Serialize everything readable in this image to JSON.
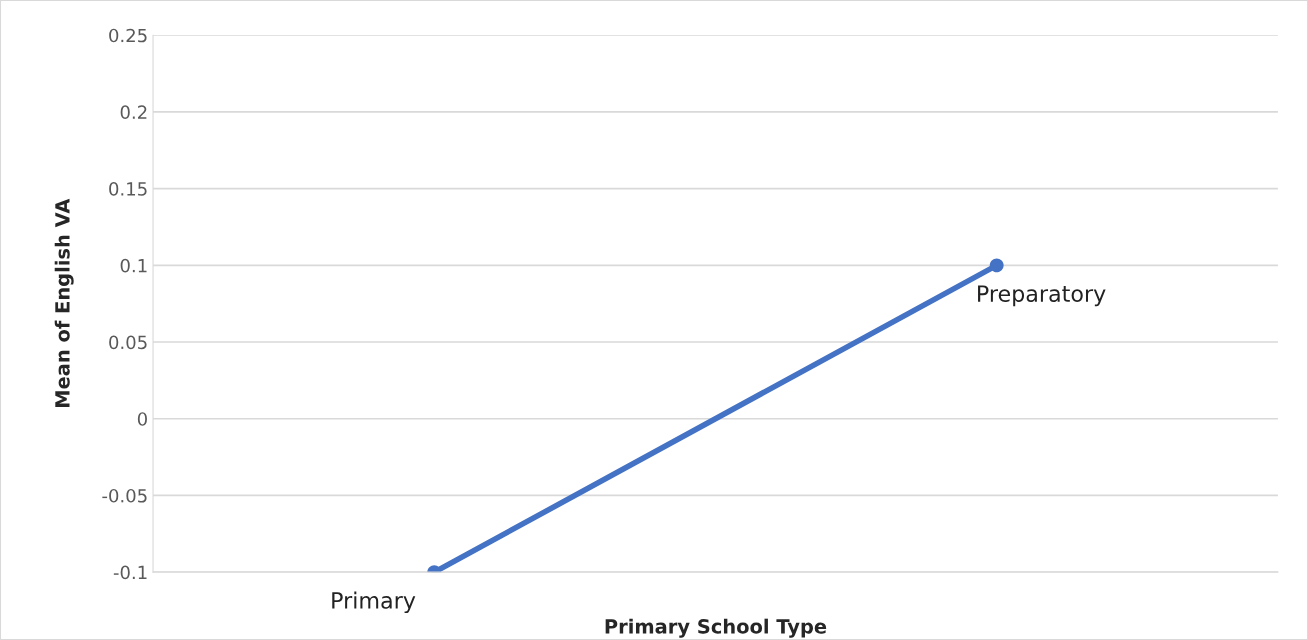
{
  "chart_data": {
    "type": "line",
    "xlabel": "Primary School Type",
    "ylabel": "Mean of English VA",
    "categories": [
      "Primary",
      "Preparatory"
    ],
    "series": [
      {
        "color": "#4472c4",
        "values": [
          -0.1,
          0.1
        ]
      }
    ],
    "ylim": [
      -0.1,
      0.25
    ],
    "yticks": [
      -0.1,
      -0.05,
      0,
      0.05,
      0.1,
      0.15,
      0.2,
      0.25
    ],
    "grid": "y",
    "marker": "circle",
    "line_style": "solid",
    "tick_labels": "y"
  }
}
